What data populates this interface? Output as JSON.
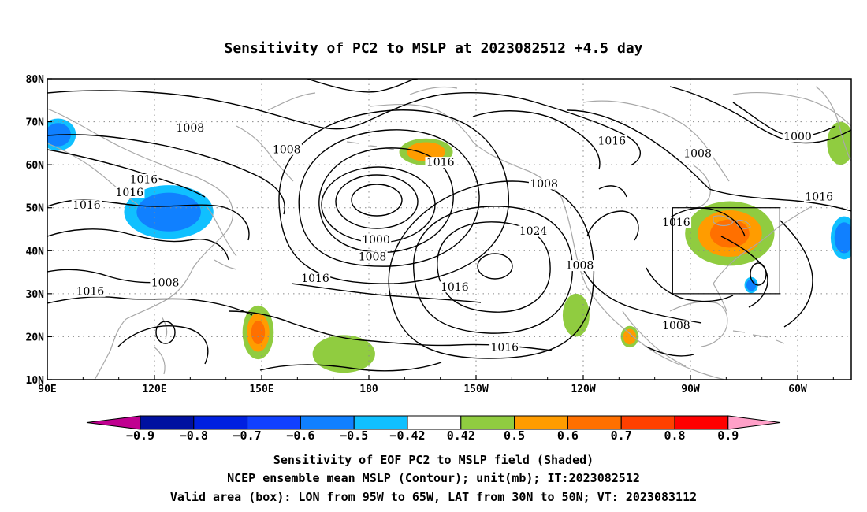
{
  "title": "Sensitivity of PC2 to MSLP at 2023082512 +4.5 day",
  "map": {
    "lon_labels": [
      "90E",
      "120E",
      "150E",
      "180",
      "150W",
      "120W",
      "90W",
      "60W"
    ],
    "lat_labels": [
      "80N",
      "70N",
      "60N",
      "50N",
      "40N",
      "30N",
      "20N",
      "10N"
    ],
    "lon_range_deg_east": [
      90,
      315
    ],
    "lat_range_deg": [
      10,
      80
    ],
    "grid": "dotted",
    "valid_box": {
      "lon_w": 265,
      "lon_e": 295,
      "lat_s": 30,
      "lat_n": 50
    }
  },
  "contours": {
    "interval_mb": 8,
    "labels": [
      {
        "text": "1008",
        "lon": 130,
        "lat": 68
      },
      {
        "text": "1008",
        "lon": 157,
        "lat": 63
      },
      {
        "text": "1016",
        "lon": 117,
        "lat": 56
      },
      {
        "text": "1016",
        "lon": 113,
        "lat": 53
      },
      {
        "text": "1016",
        "lon": 101,
        "lat": 50
      },
      {
        "text": "1016",
        "lon": 200,
        "lat": 60
      },
      {
        "text": "1016",
        "lon": 248,
        "lat": 65
      },
      {
        "text": "1000",
        "lon": 300,
        "lat": 66
      },
      {
        "text": "1008",
        "lon": 272,
        "lat": 62
      },
      {
        "text": "1008",
        "lon": 229,
        "lat": 55
      },
      {
        "text": "1016",
        "lon": 306,
        "lat": 52
      },
      {
        "text": "1016",
        "lon": 266,
        "lat": 46
      },
      {
        "text": "1000",
        "lon": 182,
        "lat": 42
      },
      {
        "text": "1008",
        "lon": 181,
        "lat": 38
      },
      {
        "text": "1024",
        "lon": 226,
        "lat": 44
      },
      {
        "text": "1016",
        "lon": 165,
        "lat": 33
      },
      {
        "text": "1016",
        "lon": 204,
        "lat": 31
      },
      {
        "text": "1008",
        "lon": 239,
        "lat": 36
      },
      {
        "text": "1016",
        "lon": 102,
        "lat": 30
      },
      {
        "text": "1008",
        "lon": 123,
        "lat": 32
      },
      {
        "text": "1016",
        "lon": 218,
        "lat": 17
      },
      {
        "text": "1008",
        "lon": 266,
        "lat": 22
      }
    ]
  },
  "shading": {
    "colorbar_labels": [
      "−0.9",
      "−0.8",
      "−0.7",
      "−0.6",
      "−0.5",
      "−0.42",
      "0.42",
      "0.5",
      "0.6",
      "0.7",
      "0.8",
      "0.9"
    ],
    "colorbar_colors": [
      "#c00090",
      "#0010a0",
      "#0020e0",
      "#1040ff",
      "#1080ff",
      "#10c0ff",
      "#ffffff",
      "#90cc40",
      "#ff9c00",
      "#ff7000",
      "#ff4000",
      "#ff0000",
      "#ffa0c8"
    ],
    "regions": [
      {
        "lon": 93,
        "lat": 67,
        "r_lon": 4,
        "r_lat": 3,
        "value": -0.55
      },
      {
        "lon": 124,
        "lat": 49,
        "r_lon": 10,
        "r_lat": 5,
        "value": -0.55
      },
      {
        "lon": 149,
        "lat": 21,
        "r_lon": 3.5,
        "r_lat": 5,
        "value": 0.62
      },
      {
        "lon": 173,
        "lat": 16,
        "r_lon": 7,
        "r_lat": 3.5,
        "value": 0.5
      },
      {
        "lon": 196,
        "lat": 63,
        "r_lon": 6,
        "r_lat": 2.5,
        "value": 0.55
      },
      {
        "lon": 238,
        "lat": 25,
        "r_lon": 3,
        "r_lat": 4,
        "value": 0.5
      },
      {
        "lon": 253,
        "lat": 20,
        "r_lon": 2,
        "r_lat": 2,
        "value": 0.6
      },
      {
        "lon": 281,
        "lat": 44,
        "r_lon": 10,
        "r_lat": 6,
        "value": 0.7
      },
      {
        "lon": 287,
        "lat": 32,
        "r_lon": 1.5,
        "r_lat": 1.5,
        "value": -0.55
      },
      {
        "lon": 313,
        "lat": 43,
        "r_lon": 3,
        "r_lat": 4,
        "value": -0.55
      },
      {
        "lon": 312,
        "lat": 65,
        "r_lon": 3,
        "r_lat": 4,
        "value": 0.5
      }
    ]
  },
  "captions": [
    "Sensitivity of EOF PC2 to MSLP field (Shaded)",
    "NCEP ensemble mean MSLP (Contour); unit(mb); IT:2023082512",
    "Valid area (box): LON from 95W to 65W, LAT from 30N to 50N; VT: 2023083112"
  ]
}
